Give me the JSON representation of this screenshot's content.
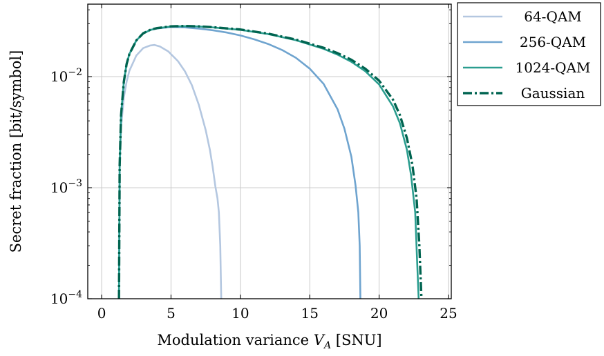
{
  "chart_data": {
    "type": "line",
    "title": "",
    "xlabel": "Modulation variance",
    "xlabel_symbol": "V",
    "xlabel_subscript": "A",
    "xlabel_unit": "[SNU]",
    "ylabel": "Secret fraction [bit/symbol]",
    "y_scale": "log",
    "xlim": [
      -1,
      25.2
    ],
    "ylim": [
      0.0001,
      0.045
    ],
    "x_ticks": [
      0,
      5,
      10,
      15,
      20,
      25
    ],
    "x_tick_labels": [
      "0",
      "5",
      "10",
      "15",
      "20",
      "25"
    ],
    "y_ticks": [
      0.0001,
      0.001,
      0.01
    ],
    "y_tick_labels": [
      {
        "base": "10",
        "exp": "−4"
      },
      {
        "base": "10",
        "exp": "−3"
      },
      {
        "base": "10",
        "exp": "−2"
      }
    ],
    "grid": true,
    "legend_position": "outside-top-right",
    "series": [
      {
        "name": "64-QAM",
        "color": "#b4c7e0",
        "dash": "solid",
        "x": [
          1.25,
          1.3,
          1.4,
          1.6,
          1.8,
          2.0,
          2.5,
          3.0,
          3.5,
          3.8,
          4.2,
          4.8,
          5.5,
          6.0,
          6.5,
          7.0,
          7.5,
          7.8,
          8.0,
          8.2,
          8.35,
          8.45,
          8.55,
          8.62
        ],
        "y": [
          0.0001,
          0.0015,
          0.0035,
          0.0065,
          0.009,
          0.0113,
          0.0155,
          0.0181,
          0.0191,
          0.0193,
          0.0187,
          0.0169,
          0.0138,
          0.0112,
          0.0084,
          0.0056,
          0.0033,
          0.0022,
          0.00155,
          0.00102,
          0.0008,
          0.0006,
          0.0003,
          0.0001
        ]
      },
      {
        "name": "256-QAM",
        "color": "#6fa4cf",
        "dash": "solid",
        "x": [
          1.25,
          1.3,
          1.4,
          1.6,
          1.8,
          2.0,
          2.5,
          3.0,
          3.5,
          4.0,
          5.0,
          6.0,
          7.0,
          8.0,
          9.0,
          10.0,
          11.0,
          12.0,
          13.0,
          14.0,
          15.0,
          16.0,
          17.0,
          17.5,
          18.0,
          18.3,
          18.5,
          18.6,
          18.65
        ],
        "y": [
          0.0001,
          0.0016,
          0.0045,
          0.009,
          0.013,
          0.016,
          0.0212,
          0.0245,
          0.0263,
          0.0272,
          0.028,
          0.0278,
          0.0271,
          0.0262,
          0.025,
          0.0235,
          0.0217,
          0.0197,
          0.0174,
          0.0148,
          0.0118,
          0.0086,
          0.0051,
          0.0034,
          0.0019,
          0.00105,
          0.0006,
          0.0003,
          0.0001
        ]
      },
      {
        "name": "1024-QAM",
        "color": "#2a9d8f",
        "dash": "solid",
        "x": [
          1.25,
          1.3,
          1.4,
          1.6,
          1.8,
          2.0,
          2.5,
          3.0,
          3.5,
          4.0,
          5.0,
          6.0,
          7.0,
          8.0,
          10.0,
          12.0,
          14.0,
          16.0,
          17.0,
          18.0,
          19.0,
          20.0,
          21.0,
          21.5,
          22.0,
          22.3,
          22.6,
          22.75,
          22.85
        ],
        "y": [
          0.0001,
          0.0016,
          0.0045,
          0.009,
          0.013,
          0.016,
          0.0212,
          0.0245,
          0.0263,
          0.0273,
          0.0283,
          0.0285,
          0.0283,
          0.0278,
          0.0264,
          0.0242,
          0.0213,
          0.0178,
          0.0158,
          0.0136,
          0.0112,
          0.0085,
          0.0054,
          0.0038,
          0.0022,
          0.0013,
          0.0006,
          0.0002,
          0.0001
        ]
      },
      {
        "name": "Gaussian",
        "color": "#006450",
        "dash": "dashdot",
        "x": [
          1.25,
          1.3,
          1.4,
          1.6,
          1.8,
          2.0,
          2.5,
          3.0,
          3.5,
          4.0,
          5.0,
          6.0,
          7.0,
          8.0,
          10.0,
          12.0,
          14.0,
          16.0,
          17.0,
          18.0,
          19.0,
          20.0,
          21.0,
          21.5,
          22.0,
          22.4,
          22.7,
          22.9,
          23.05
        ],
        "y": [
          0.0001,
          0.0016,
          0.0045,
          0.009,
          0.013,
          0.016,
          0.0212,
          0.0246,
          0.0264,
          0.0274,
          0.0284,
          0.0286,
          0.0284,
          0.0279,
          0.0266,
          0.0244,
          0.0216,
          0.0182,
          0.0163,
          0.0142,
          0.0118,
          0.0092,
          0.0062,
          0.0045,
          0.0028,
          0.0016,
          0.0008,
          0.0003,
          0.0001
        ]
      }
    ]
  }
}
